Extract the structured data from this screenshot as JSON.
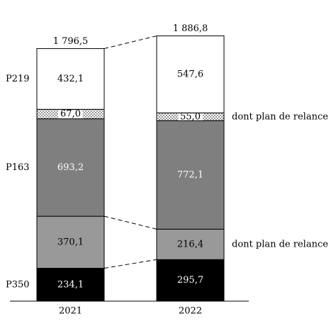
{
  "chart_data": {
    "type": "bar",
    "stacked": true,
    "categories": [
      "2021",
      "2022"
    ],
    "totals": [
      "1 796,5",
      "1 886,8"
    ],
    "ylim": [
      0,
      1900
    ],
    "grid": false,
    "series": [
      {
        "name": "P350",
        "values": [
          234.1,
          295.7
        ],
        "labels": [
          "234,1",
          "295,7"
        ],
        "fill": "#000000",
        "label_color": "#ffffff",
        "pattern": false
      },
      {
        "name": "",
        "values": [
          370.1,
          216.4
        ],
        "labels": [
          "370,1",
          "216,4"
        ],
        "fill": "#999999",
        "label_color": "#000000",
        "pattern": false
      },
      {
        "name": "P163",
        "values": [
          693.2,
          772.1
        ],
        "labels": [
          "693,2",
          "772,1"
        ],
        "fill": "#7f7f7f",
        "label_color": "#ffffff",
        "pattern": false
      },
      {
        "name": "",
        "values": [
          67.0,
          55.0
        ],
        "labels": [
          "67,0",
          "55,0"
        ],
        "fill": "#ffffff",
        "label_color": "#000000",
        "pattern": true
      },
      {
        "name": "P219",
        "values": [
          432.1,
          547.6
        ],
        "labels": [
          "432,1",
          "547,6"
        ],
        "fill": "#ffffff",
        "label_color": "#000000",
        "pattern": false
      }
    ],
    "annotations": [
      {
        "text": "dont plan de relance",
        "series_index": 3
      },
      {
        "text": "dont plan de relance",
        "series_index": 1
      }
    ]
  }
}
